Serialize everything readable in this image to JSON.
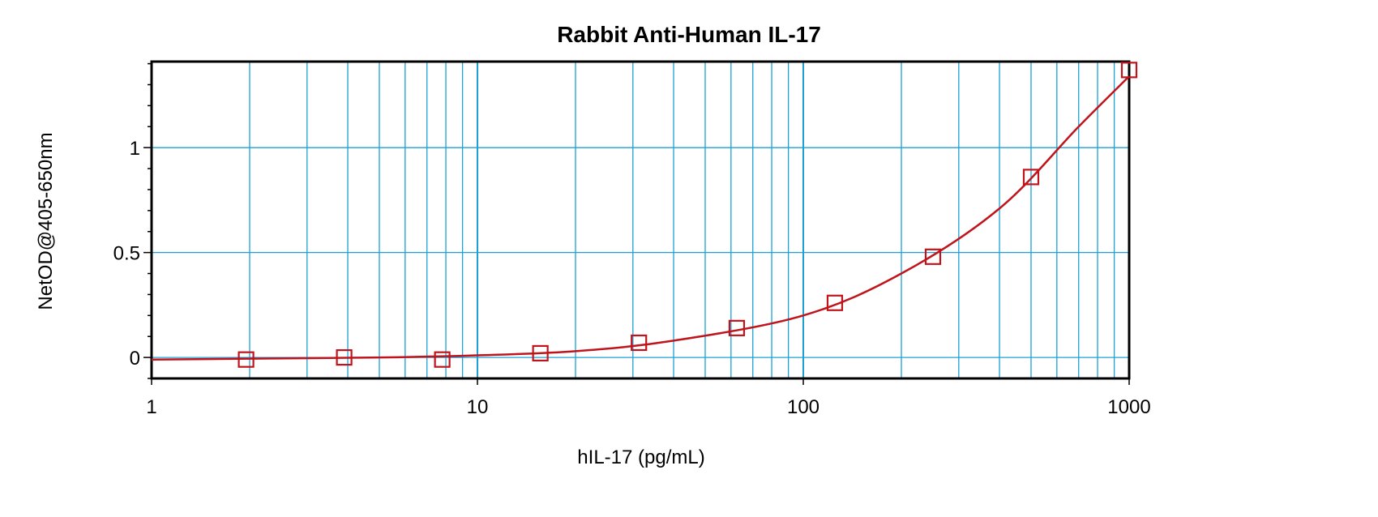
{
  "chart_data": {
    "type": "scatter",
    "title": "Rabbit Anti-Human IL-17",
    "xlabel": "hIL-17 (pg/mL)",
    "ylabel": "NetOD@405-650nm",
    "x_scale": "log",
    "xlim": [
      1,
      1000
    ],
    "ylim": [
      -0.1,
      1.41
    ],
    "x_ticks": [
      1,
      10,
      100,
      1000
    ],
    "x_tick_labels": [
      "1",
      "10",
      "100",
      "1000"
    ],
    "y_ticks": [
      0,
      0.5,
      1
    ],
    "y_tick_labels": [
      "0",
      "0.5",
      "1"
    ],
    "grid": true,
    "legend": "none",
    "series": [
      {
        "points": [
          {
            "x": 1.95,
            "y": -0.01
          },
          {
            "x": 3.9,
            "y": 0.0
          },
          {
            "x": 7.8,
            "y": -0.01
          },
          {
            "x": 15.6,
            "y": 0.02
          },
          {
            "x": 31.3,
            "y": 0.07
          },
          {
            "x": 62.5,
            "y": 0.14
          },
          {
            "x": 125,
            "y": 0.26
          },
          {
            "x": 250,
            "y": 0.48
          },
          {
            "x": 500,
            "y": 0.86
          },
          {
            "x": 1000,
            "y": 1.37
          }
        ],
        "fit_curve": [
          {
            "x": 1,
            "y": -0.01
          },
          {
            "x": 5,
            "y": 0.0
          },
          {
            "x": 10,
            "y": 0.01
          },
          {
            "x": 20,
            "y": 0.03
          },
          {
            "x": 40,
            "y": 0.08
          },
          {
            "x": 100,
            "y": 0.2
          },
          {
            "x": 200,
            "y": 0.4
          },
          {
            "x": 400,
            "y": 0.71
          },
          {
            "x": 700,
            "y": 1.1
          },
          {
            "x": 1000,
            "y": 1.34
          }
        ]
      }
    ],
    "colors": {
      "series": "#c0141c",
      "grid": "#1ba1d6",
      "axis": "#000000"
    }
  }
}
